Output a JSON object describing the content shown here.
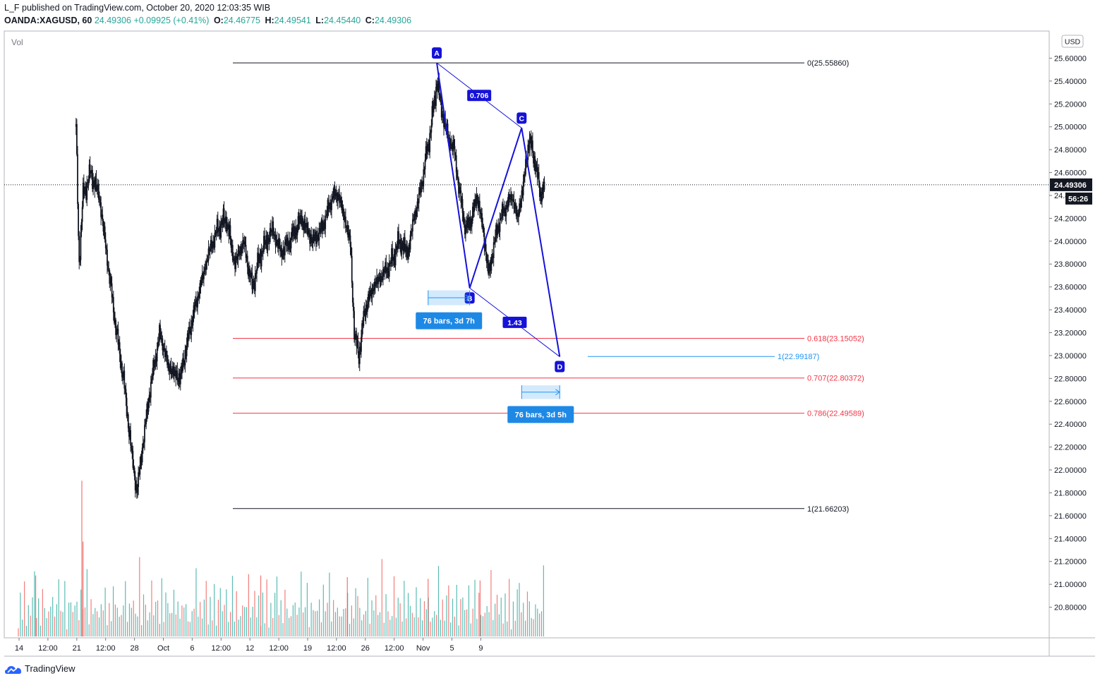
{
  "header": {
    "published_line": "L_F published on TradingView.com, October 20, 2020 12:03:35 WIB",
    "symbol": "OANDA:XAGUSD, 60",
    "last": "24.49306",
    "change": "+0.09925 (+0.41%)",
    "open_label": "O:",
    "open": "24.46775",
    "high_label": "H:",
    "high": "24.49541",
    "low_label": "L:",
    "low": "24.45440",
    "close_label": "C:",
    "close": "24.49306"
  },
  "footer": {
    "brand": "TradingView"
  },
  "colors": {
    "candle": "#131722",
    "pattern": "#1512d8",
    "fib_black": "#131722",
    "fib_red": "#f23645",
    "measure_blue": "#2196f3",
    "vol_green": "#26a69a",
    "vol_red": "#ef5350"
  },
  "chart_data": {
    "type": "candlestick",
    "instrument": "OANDA:XAGUSD",
    "timeframe": "60",
    "currency_badge": "USD",
    "volume_label": "Vol",
    "price_axis": {
      "ylim": [
        20.68,
        25.72
      ],
      "ticks": [
        20.8,
        21.0,
        21.2,
        21.4,
        21.6,
        21.8,
        22.0,
        22.2,
        22.4,
        22.6,
        22.8,
        23.0,
        23.2,
        23.4,
        23.6,
        23.8,
        24.0,
        24.2,
        24.4,
        24.6,
        24.8,
        25.0,
        25.2,
        25.4,
        25.6
      ],
      "tick_labels": [
        "20.80000",
        "21.00000",
        "21.20000",
        "21.40000",
        "21.60000",
        "21.80000",
        "22.00000",
        "22.20000",
        "22.40000",
        "22.60000",
        "22.80000",
        "23.00000",
        "23.20000",
        "23.40000",
        "23.60000",
        "23.80000",
        "24.00000",
        "24.20000",
        "24.40000",
        "24.60000",
        "24.80000",
        "25.00000",
        "25.20000",
        "25.40000",
        "25.60000"
      ],
      "current_price": 24.49306,
      "current_price_label": "24.49306",
      "countdown_label": "56:26"
    },
    "time_axis": {
      "labels": [
        "14",
        "12:00",
        "21",
        "12:00",
        "28",
        "Oct",
        "6",
        "12:00",
        "12",
        "12:00",
        "19",
        "12:00",
        "26",
        "12:00",
        "Nov",
        "5",
        "9"
      ],
      "label_days": [
        0,
        0.5,
        1,
        1.5,
        2,
        2.5,
        3,
        3.5,
        4,
        4.5,
        5,
        5.5,
        6,
        6.5,
        7,
        7.5,
        8
      ]
    },
    "price_path": [
      [
        1.0,
        25.0
      ],
      [
        1.05,
        23.8
      ],
      [
        1.12,
        24.4
      ],
      [
        1.25,
        24.6
      ],
      [
        1.4,
        24.4
      ],
      [
        1.55,
        23.8
      ],
      [
        1.7,
        23.2
      ],
      [
        1.82,
        22.8
      ],
      [
        1.95,
        22.2
      ],
      [
        2.05,
        21.8
      ],
      [
        2.15,
        22.2
      ],
      [
        2.28,
        22.7
      ],
      [
        2.45,
        23.2
      ],
      [
        2.6,
        22.9
      ],
      [
        2.8,
        22.8
      ],
      [
        3.0,
        23.3
      ],
      [
        3.15,
        23.6
      ],
      [
        3.3,
        23.9
      ],
      [
        3.45,
        24.1
      ],
      [
        3.6,
        24.2
      ],
      [
        3.75,
        23.8
      ],
      [
        3.9,
        24.0
      ],
      [
        4.05,
        23.6
      ],
      [
        4.2,
        23.9
      ],
      [
        4.4,
        24.1
      ],
      [
        4.55,
        23.9
      ],
      [
        4.7,
        24.0
      ],
      [
        4.9,
        24.2
      ],
      [
        5.1,
        24.0
      ],
      [
        5.25,
        24.1
      ],
      [
        5.35,
        24.25
      ],
      [
        5.45,
        24.4
      ],
      [
        5.55,
        24.4
      ],
      [
        5.65,
        24.2
      ],
      [
        5.75,
        24.0
      ],
      [
        5.82,
        23.2
      ],
      [
        5.9,
        23.0
      ],
      [
        6.0,
        23.4
      ],
      [
        6.15,
        23.6
      ],
      [
        6.3,
        23.7
      ],
      [
        6.45,
        23.8
      ],
      [
        6.6,
        24.0
      ],
      [
        6.75,
        23.9
      ],
      [
        6.85,
        24.2
      ],
      [
        6.95,
        24.4
      ],
      [
        7.05,
        24.7
      ],
      [
        7.15,
        25.0
      ],
      [
        7.25,
        25.4
      ],
      [
        7.35,
        25.1
      ],
      [
        7.45,
        24.9
      ],
      [
        7.55,
        24.8
      ],
      [
        7.65,
        24.4
      ],
      [
        7.75,
        24.1
      ],
      [
        7.85,
        24.2
      ],
      [
        7.95,
        24.4
      ],
      [
        8.05,
        24.1
      ],
      [
        8.15,
        23.7
      ],
      [
        8.25,
        24.0
      ],
      [
        8.35,
        24.2
      ],
      [
        8.45,
        24.3
      ],
      [
        8.55,
        24.4
      ],
      [
        8.65,
        24.2
      ],
      [
        8.75,
        24.5
      ],
      [
        8.85,
        24.9
      ],
      [
        8.95,
        24.7
      ],
      [
        9.05,
        24.4
      ],
      [
        9.12,
        24.49
      ]
    ],
    "price_noise": [
      0.04,
      0.07,
      0.03,
      0.06,
      0.05,
      0.08,
      0.02,
      0.05
    ],
    "volume": {
      "ylim": [
        0,
        1000
      ],
      "values": [
        120,
        260,
        180,
        340,
        90,
        210,
        150,
        300,
        420,
        170,
        230,
        130,
        280,
        360,
        110,
        240,
        190,
        310,
        140,
        220,
        470,
        160,
        250,
        330,
        100,
        200,
        380,
        150,
        270,
        230,
        120,
        350,
        180,
        260,
        410,
        140,
        220,
        300,
        170,
        250
      ],
      "spikes": [
        {
          "x": 1.1,
          "v": 920
        },
        {
          "x": 1.12,
          "v": 560
        },
        {
          "x": 0.3,
          "v": 360
        },
        {
          "x": 4.2,
          "v": 360
        },
        {
          "x": 5.7,
          "v": 350
        },
        {
          "x": 7.1,
          "v": 340
        },
        {
          "x": 8.0,
          "v": 330
        }
      ]
    },
    "fib_levels": [
      {
        "ratio": "0",
        "price": 25.5586,
        "label": "0(25.55860)",
        "color": "#131722"
      },
      {
        "ratio": "0.618",
        "price": 23.15052,
        "label": "0.618(23.15052)",
        "color": "#f23645"
      },
      {
        "ratio": "0.707",
        "price": 22.80372,
        "label": "0.707(22.80372)",
        "color": "#f23645"
      },
      {
        "ratio": "0.786",
        "price": 22.49589,
        "label": "0.786(22.49589)",
        "color": "#f23645"
      },
      {
        "ratio": "1",
        "price": 21.66203,
        "label": "1(21.66203)",
        "color": "#131722"
      }
    ],
    "extension_level": {
      "price": 22.99187,
      "label": "1(22.99187)",
      "color": "#2196f3"
    },
    "abcd_pattern": {
      "points": [
        {
          "name": "A",
          "x": 7.25,
          "price": 25.5586
        },
        {
          "name": "B",
          "x": 7.82,
          "price": 23.59
        },
        {
          "name": "C",
          "x": 8.72,
          "price": 24.99
        },
        {
          "name": "D",
          "x": 9.38,
          "price": 22.99
        }
      ],
      "ratios": [
        {
          "label": "0.706",
          "from": "A",
          "to": "C"
        },
        {
          "label": "1.43",
          "from": "B",
          "to": "D"
        }
      ]
    },
    "measurements": [
      {
        "label": "76 bars, 3d 7h",
        "x_start": 7.1,
        "x_end": 7.82,
        "price_top": 23.57,
        "price_bottom": 23.44
      },
      {
        "label": "76 bars, 3d 5h",
        "x_start": 8.72,
        "x_end": 9.38,
        "price_top": 22.74,
        "price_bottom": 22.62
      }
    ]
  }
}
